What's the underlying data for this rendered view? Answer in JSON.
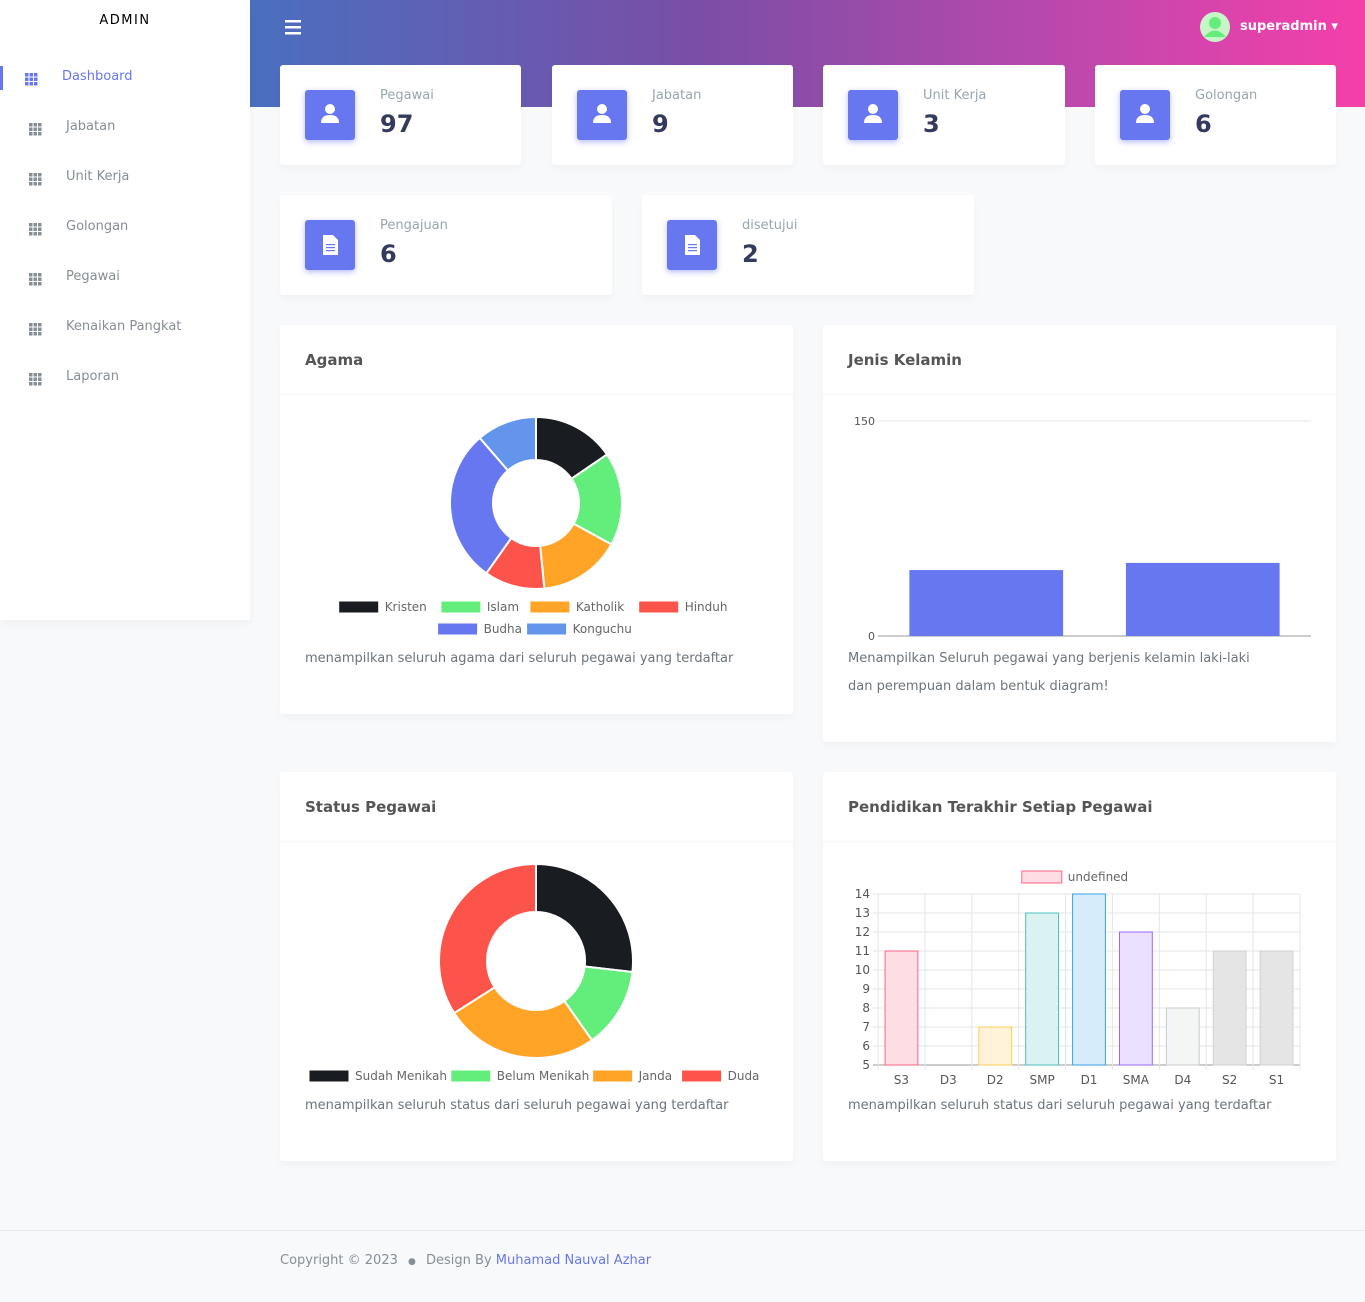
{
  "sidebar": {
    "brand": "ADMIN",
    "menu": [
      "Dashboard",
      "Jabatan",
      "Unit Kerja",
      "Golongan",
      "Pegawai",
      "Kenaikan Pangkat",
      "Laporan"
    ]
  },
  "header": {
    "user": "superadmin"
  },
  "stats": [
    {
      "label": "Pegawai",
      "value": 97
    },
    {
      "label": "Jabatan",
      "value": 9
    },
    {
      "label": "Unit Kerja",
      "value": 3
    },
    {
      "label": "Golongan",
      "value": 6
    },
    {
      "label": "Pengajuan",
      "value": 6
    },
    {
      "label": "disetujui",
      "value": 2
    }
  ],
  "chart_data": [
    {
      "type": "doughnut",
      "title": "Agama",
      "categories": [
        "Kristen",
        "Islam",
        "Katholik",
        "Hinduh",
        "Budha",
        "Konguchu"
      ],
      "values": [
        15,
        17,
        15,
        11,
        28,
        11
      ],
      "colors": [
        "#191d21",
        "#63ed7a",
        "#ffa426",
        "#fc544b",
        "#6777ef",
        "#6495ed"
      ],
      "legend": "bottom",
      "description": "menampilkan seluruh agama dari seluruh pegawai yang terdaftar"
    },
    {
      "type": "bar",
      "title": "Jenis Kelamin",
      "categories": [
        null,
        null
      ],
      "values": [
        46,
        51
      ],
      "color": "#6777ef",
      "ylim": [
        0,
        150
      ],
      "yticks": [
        0,
        150
      ],
      "grid": true,
      "description": "Menampilkan Seluruh pegawai yang berjenis kelamin laki-laki dan perempuan dalam bentuk diagram!"
    },
    {
      "type": "doughnut",
      "title": "Status Pegawai",
      "categories": [
        "Sudah Menikah",
        "Belum Menikah",
        "Janda",
        "Duda"
      ],
      "values": [
        26,
        13,
        25,
        33
      ],
      "colors": [
        "#191d21",
        "#63ed7a",
        "#ffa426",
        "#fc544b"
      ],
      "legend": "bottom",
      "description": "menampilkan seluruh status dari seluruh pegawai yang terdaftar"
    },
    {
      "type": "bar",
      "title": "Pendidikan Terakhir Setiap Pegawai",
      "categories": [
        "S3",
        "D3",
        "D2",
        "SMP",
        "D1",
        "SMA",
        "D4",
        "S2",
        "S1"
      ],
      "series": [
        {
          "name": "undefined",
          "values": [
            11,
            5,
            7,
            13,
            14,
            12,
            8,
            11,
            11
          ],
          "colors": [
            "#ffdde4",
            "#ffecd9",
            "#fff3da",
            "#dbf2f2",
            "#d7ecfb",
            "#ebe0ff",
            "#f4f5f5",
            "#e5e5e5",
            "#e5e5e5"
          ],
          "border_colors": [
            "#ff6384",
            "#ff9f40",
            "#ffcd56",
            "#4bc0c0",
            "#36a2eb",
            "#9966ff",
            "#c9cbcf",
            "#d0d0d0",
            "#d0d0d0"
          ]
        }
      ],
      "ylim": [
        5,
        14
      ],
      "yticks": [
        5,
        6,
        7,
        8,
        9,
        10,
        11,
        12,
        13,
        14
      ],
      "grid": true,
      "legend": "top",
      "description": "menampilkan seluruh status dari seluruh pegawai yang terdaftar"
    }
  ],
  "footer": {
    "copyright": "Copyright © 2023",
    "design_by": "Design By",
    "author": "Muhamad Nauval Azhar"
  }
}
